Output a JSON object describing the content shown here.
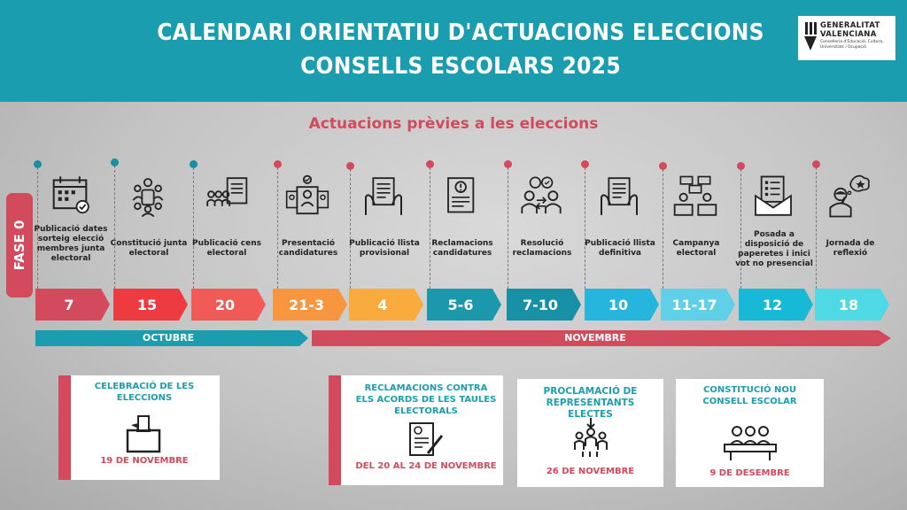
{
  "header": {
    "title": "CALENDARI ORIENTATIU D'ACTUACIONS ELECCIONS CONSELLS ESCOLARS 2025",
    "logo": {
      "line1": "GENERALITAT",
      "line2": "VALENCIANA",
      "line3": "Conselleria d'Educació, Cultura, Universitats i Ocupació"
    }
  },
  "subtitle": "Actuacions prèvies a les eleccions",
  "phase": "FASE 0",
  "colors": {
    "teal": "#1a9eaf",
    "red": "#d24a5b",
    "dot_teal": "#1a8fa3",
    "dot_red": "#d24a5b"
  },
  "steps": [
    {
      "label": "Publicació dates sorteig elecció membres junta electoral",
      "date": "7",
      "color": "#d24a5b",
      "dot": "teal",
      "icon": "calendar-check-icon"
    },
    {
      "label": "Constitució junta electoral",
      "date": "15",
      "color": "#ee3b41",
      "dot": "teal",
      "icon": "meeting-table-icon"
    },
    {
      "label": "Publicació cens electoral",
      "date": "20",
      "color": "#f05b57",
      "dot": "teal",
      "icon": "people-document-icon"
    },
    {
      "label": "Presentació candidatures",
      "date": "21-3",
      "color": "#f7963f",
      "dot": "red",
      "icon": "candidate-cards-icon"
    },
    {
      "label": "Publicació llista provisional",
      "date": "4",
      "color": "#f9ac3d",
      "dot": "red",
      "icon": "hands-document-icon"
    },
    {
      "label": "Reclamacions candidatures",
      "date": "5-6",
      "color": "#1b98ab",
      "dot": "red",
      "icon": "document-alert-icon"
    },
    {
      "label": "Resolució reclamacions",
      "date": "7-10",
      "color": "#1890a6",
      "dot": "red",
      "icon": "people-exchange-icon"
    },
    {
      "label": "Publicació llista definitiva",
      "date": "10",
      "color": "#26b5dd",
      "dot": "red",
      "icon": "hands-document-icon"
    },
    {
      "label": "Campanya electoral",
      "date": "11-17",
      "color": "#5fd0e8",
      "dot": "red",
      "icon": "debate-icon"
    },
    {
      "label": "Posada a disposició de paperetes i inici vot no presencial",
      "date": "12",
      "color": "#17b9d6",
      "dot": "red",
      "icon": "envelope-ballot-icon"
    },
    {
      "label": "Jornada de reflexió",
      "date": "18",
      "color": "#4ed9e4",
      "dot": "red",
      "icon": "thinking-person-icon"
    }
  ],
  "months": [
    {
      "label": "OCTUBRE",
      "color": "#1a9eaf"
    },
    {
      "label": "NOVEMBRE",
      "color": "#d24a5b"
    }
  ],
  "cards": [
    {
      "title": "CELEBRACIÓ DE LES ELECCIONS",
      "date": "19 DE NOVEMBRE",
      "icon": "ballot-box-icon",
      "accent": true
    },
    {
      "title": "RECLAMACIONS CONTRA ELS ACORDS DE LES TAULES ELECTORALS",
      "date": "DEL 20 AL 24 DE NOVEMBRE",
      "icon": "signed-document-icon",
      "accent": true
    },
    {
      "title": "PROCLAMACIÓ DE REPRESENTANTS ELECTES",
      "date": "26 DE NOVEMBRE",
      "icon": "group-people-icon",
      "accent": false
    },
    {
      "title": "CONSTITUCIÓ NOU CONSELL ESCOLAR",
      "date": "9 DE DESEMBRE",
      "icon": "council-table-icon",
      "accent": false
    }
  ]
}
